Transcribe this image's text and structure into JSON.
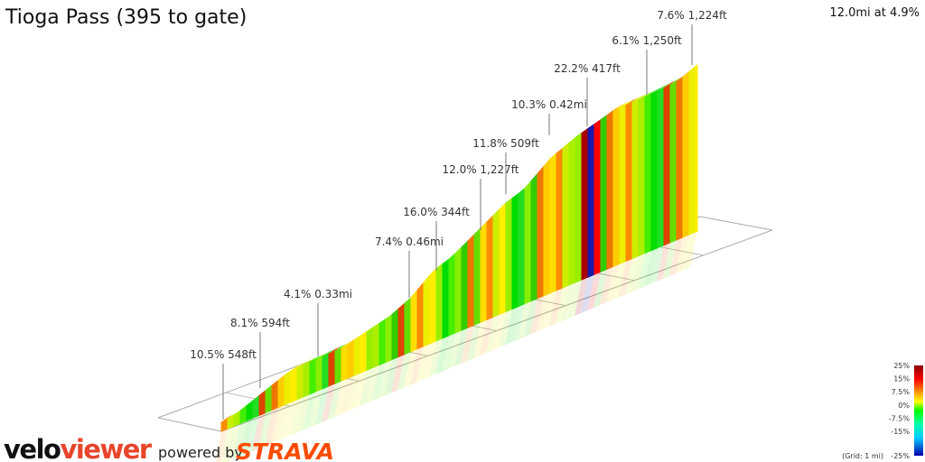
{
  "title": "Tioga Pass (395 to gate)",
  "summary": "12.0mi at 4.9%",
  "annotations": [
    "10.5% 548ft",
    "8.1% 594ft",
    "4.1% 0.33mi",
    "7.4% 0.46mi",
    "16.0% 344ft",
    "12.0% 1,227ft",
    "11.8% 509ft",
    "10.3% 0.42mi",
    "22.2% 417ft",
    "6.1% 1,250ft",
    "7.6% 1,224ft"
  ],
  "legend": {
    "labels": [
      "25%",
      "15%",
      "7.5%",
      "0%",
      "-7.5%",
      "-15%",
      "-25%"
    ],
    "grid_note": "(Grid: 1 mi)"
  },
  "branding": {
    "logo_velo": "velo",
    "logo_viewer": "viewer",
    "powered_by": "powered by",
    "strava": "STRAVA"
  }
}
